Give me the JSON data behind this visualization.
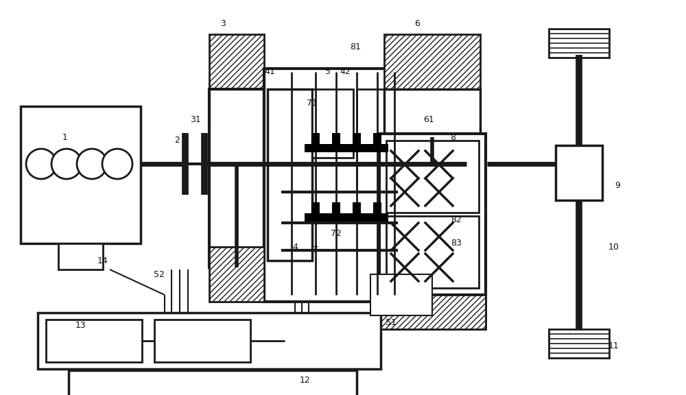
{
  "bg": "#ffffff",
  "lc": "#1a1a1a",
  "figsize": [
    10.0,
    5.76
  ],
  "dpi": 100,
  "components": "hybrid_powertrain_diagram"
}
